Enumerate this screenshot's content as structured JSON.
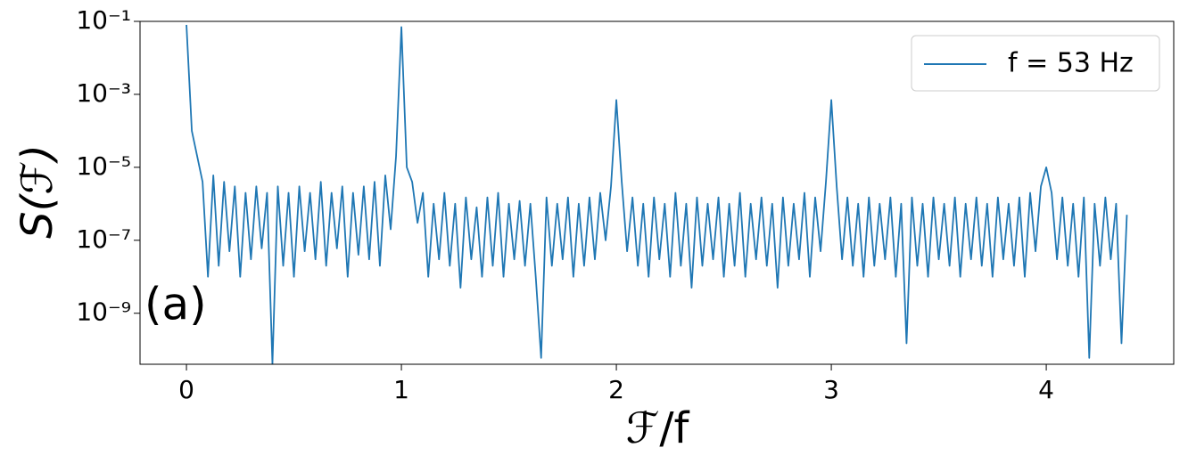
{
  "chart_data": {
    "type": "line",
    "xlabel": "ℱ/f",
    "ylabel": "S(ℱ)",
    "annotation": "(a)",
    "yscale": "log",
    "legend": "upper right",
    "xlim": [
      -0.216,
      4.593
    ],
    "xticks": [
      0,
      1,
      2,
      3,
      4
    ],
    "ylim": [
      4e-11,
      0.1
    ],
    "yticks": [
      {
        "value": 0.1,
        "label": "10⁻¹"
      },
      {
        "value": 0.001,
        "label": "10⁻³"
      },
      {
        "value": 1e-05,
        "label": "10⁻⁵"
      },
      {
        "value": 1e-07,
        "label": "10⁻⁷"
      },
      {
        "value": 1e-09,
        "label": "10⁻⁹"
      }
    ],
    "x": [
      0,
      0.025,
      0.05,
      0.075,
      0.1,
      0.125,
      0.15,
      0.175,
      0.2,
      0.225,
      0.25,
      0.275,
      0.3,
      0.325,
      0.35,
      0.375,
      0.4,
      0.425,
      0.45,
      0.475,
      0.5,
      0.525,
      0.55,
      0.575,
      0.6,
      0.625,
      0.65,
      0.675,
      0.7,
      0.725,
      0.75,
      0.775,
      0.8,
      0.825,
      0.85,
      0.875,
      0.9,
      0.925,
      0.95,
      0.975,
      1,
      1.025,
      1.05,
      1.075,
      1.1,
      1.125,
      1.15,
      1.175,
      1.2,
      1.225,
      1.25,
      1.275,
      1.3,
      1.325,
      1.35,
      1.375,
      1.4,
      1.425,
      1.45,
      1.475,
      1.5,
      1.525,
      1.55,
      1.575,
      1.6,
      1.625,
      1.65,
      1.675,
      1.7,
      1.725,
      1.75,
      1.775,
      1.8,
      1.825,
      1.85,
      1.875,
      1.9,
      1.925,
      1.95,
      1.975,
      2,
      2.025,
      2.05,
      2.075,
      2.1,
      2.125,
      2.15,
      2.175,
      2.2,
      2.225,
      2.25,
      2.275,
      2.3,
      2.325,
      2.35,
      2.375,
      2.4,
      2.425,
      2.45,
      2.475,
      2.5,
      2.525,
      2.55,
      2.575,
      2.6,
      2.625,
      2.65,
      2.675,
      2.7,
      2.725,
      2.75,
      2.775,
      2.8,
      2.825,
      2.85,
      2.875,
      2.9,
      2.925,
      2.95,
      2.975,
      3,
      3.025,
      3.05,
      3.075,
      3.1,
      3.125,
      3.15,
      3.175,
      3.2,
      3.225,
      3.25,
      3.275,
      3.3,
      3.325,
      3.35,
      3.375,
      3.4,
      3.425,
      3.45,
      3.475,
      3.5,
      3.525,
      3.55,
      3.575,
      3.6,
      3.625,
      3.65,
      3.675,
      3.7,
      3.725,
      3.75,
      3.775,
      3.8,
      3.825,
      3.85,
      3.875,
      3.9,
      3.925,
      3.95,
      3.975,
      4,
      4.025,
      4.05,
      4.075,
      4.1,
      4.125,
      4.15,
      4.175,
      4.2,
      4.225,
      4.25,
      4.275,
      4.3,
      4.325,
      4.35,
      4.375
    ],
    "series": [
      {
        "name": "f = 53 Hz",
        "color": "#1f77b4",
        "values": [
          0.08,
          0.0001,
          2e-05,
          4e-06,
          1e-08,
          6e-06,
          2e-08,
          4e-06,
          5e-08,
          3e-06,
          1e-08,
          2e-06,
          3e-08,
          3e-06,
          6e-08,
          2e-06,
          4e-11,
          3e-06,
          2e-08,
          2e-06,
          1e-08,
          3e-06,
          5e-08,
          2e-06,
          3e-08,
          4e-06,
          2e-08,
          2e-06,
          6e-08,
          3e-06,
          1e-08,
          2e-06,
          4e-08,
          3e-06,
          3e-08,
          4e-06,
          2e-08,
          6e-06,
          2e-07,
          2e-05,
          0.07,
          1e-05,
          4e-06,
          3e-07,
          2e-06,
          1e-08,
          1e-06,
          3e-08,
          2e-06,
          2e-08,
          1e-06,
          5e-09,
          1.5e-06,
          3e-08,
          8e-07,
          1e-08,
          1.5e-06,
          2e-08,
          2e-06,
          1e-08,
          1e-06,
          3e-08,
          1.2e-06,
          2e-08,
          1e-06,
          1e-08,
          6e-11,
          1.5e-06,
          2e-08,
          1e-06,
          3e-08,
          1.5e-06,
          1e-08,
          1e-06,
          2e-08,
          1.5e-06,
          3e-08,
          2e-06,
          1e-07,
          3e-06,
          0.0007,
          4e-06,
          5e-08,
          1.5e-06,
          2e-08,
          1e-06,
          1e-08,
          1.5e-06,
          3e-08,
          1e-06,
          1e-08,
          2e-06,
          2e-08,
          1e-06,
          5e-09,
          1.5e-06,
          2e-08,
          1e-06,
          3e-08,
          1.5e-06,
          1e-08,
          1e-06,
          2e-08,
          2e-06,
          1e-08,
          1e-06,
          3e-08,
          1.5e-06,
          2e-08,
          1e-06,
          5e-09,
          1.5e-06,
          2e-08,
          1e-06,
          3e-08,
          2e-06,
          1e-08,
          1.5e-06,
          5e-08,
          4e-06,
          0.0007,
          3e-06,
          3e-08,
          1.5e-06,
          2e-08,
          1e-06,
          1e-08,
          1.5e-06,
          2e-08,
          1e-06,
          3e-08,
          1.5e-06,
          1e-08,
          1e-06,
          1.5e-10,
          1.5e-06,
          2e-08,
          1e-06,
          1e-08,
          1.5e-06,
          3e-08,
          1e-06,
          2e-08,
          1.5e-06,
          1e-08,
          1e-06,
          3e-08,
          1.5e-06,
          2e-08,
          1e-06,
          1e-08,
          1.5e-06,
          3e-08,
          1e-06,
          2e-08,
          1.5e-06,
          1e-08,
          2e-06,
          5e-08,
          3e-06,
          1e-05,
          2e-06,
          3e-08,
          1.5e-06,
          2e-08,
          1e-06,
          1e-08,
          1.5e-06,
          6e-11,
          1e-06,
          2e-08,
          1.5e-06,
          3e-08,
          1e-06,
          1.5e-10,
          5e-07
        ]
      }
    ]
  }
}
